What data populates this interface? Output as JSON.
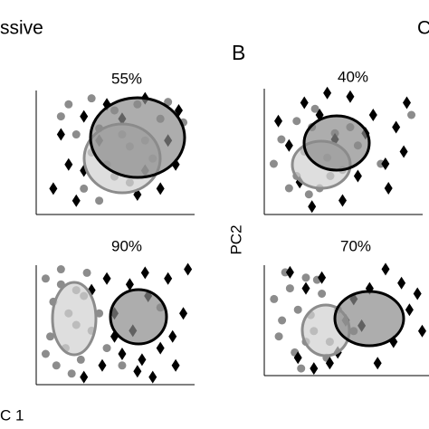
{
  "labels": {
    "panel_a": "ssive",
    "panel_b": "B",
    "panel_c": "C",
    "y_axis": "PC2",
    "x_axis": "C 1"
  },
  "chart_data": [
    {
      "type": "scatter",
      "title": "55%",
      "xlim": [
        0,
        10
      ],
      "ylim": [
        0,
        10
      ],
      "series": [
        {
          "color": "#8c8c8c",
          "marker": "circle",
          "x": [
            2,
            3.5,
            5,
            6.5,
            8.5,
            9.5,
            4,
            5.5,
            6,
            3.5,
            4.5,
            7,
            2.5,
            5,
            3,
            6,
            8,
            1.5,
            4,
            7.5
          ],
          "values": [
            9,
            9.5,
            8.5,
            9,
            9.2,
            7.5,
            7,
            6.5,
            5.5,
            5,
            4,
            6,
            6.5,
            3,
            2,
            2.5,
            7.8,
            8,
            1,
            4.5
          ]
        },
        {
          "color": "#000000",
          "marker": "diamond",
          "x": [
            1.5,
            2,
            3,
            4.5,
            7,
            8.5,
            9,
            1,
            3,
            6.5,
            8,
            5.5,
            2.5,
            9.2,
            7,
            4
          ],
          "values": [
            6.5,
            4,
            8,
            9,
            9.5,
            6,
            4,
            2,
            3.5,
            1.5,
            2,
            7.8,
            1,
            8.5,
            3.5,
            6
          ]
        }
      ]
    },
    {
      "type": "scatter",
      "title": "40%",
      "xlim": [
        0,
        10
      ],
      "ylim": [
        0,
        10
      ],
      "series": [
        {
          "color": "#8c8c8c",
          "marker": "circle",
          "x": [
            0.5,
            1,
            2,
            2.5,
            3,
            3.5,
            4,
            4.5,
            5,
            2.8,
            3.2,
            1.5,
            6,
            7.5,
            9.5,
            2,
            4.2,
            5.5
          ],
          "values": [
            4,
            6,
            3,
            5,
            7,
            2,
            4.5,
            6.5,
            3.5,
            1.5,
            8.5,
            2,
            5.5,
            4,
            8,
            7.5,
            3,
            7
          ]
        },
        {
          "color": "#000000",
          "marker": "diamond",
          "x": [
            0.8,
            1.5,
            2.5,
            3.5,
            4.5,
            5.5,
            6.5,
            7,
            7.8,
            8.5,
            9.2,
            3,
            5,
            6,
            8,
            2.2,
            4,
            9
          ],
          "values": [
            7.5,
            5.5,
            9,
            8,
            6,
            9.5,
            6.5,
            8,
            4,
            7,
            9,
            0.5,
            1,
            3,
            2,
            2.5,
            9.8,
            5
          ]
        }
      ]
    },
    {
      "type": "scatter",
      "title": "90%",
      "xlim": [
        0,
        10
      ],
      "ylim": [
        0,
        10
      ],
      "series": [
        {
          "color": "#8c8c8c",
          "marker": "circle",
          "x": [
            0.5,
            1,
            1.5,
            2,
            2.5,
            3,
            0.8,
            1.8,
            2.8,
            3.5,
            1.2,
            2.2,
            4,
            0.5,
            3.2,
            1.5,
            2.5,
            4.5,
            8,
            5.5
          ],
          "values": [
            9,
            7,
            8.5,
            6,
            5,
            7.5,
            4,
            3,
            2,
            4.5,
            1.5,
            0.8,
            6,
            2.5,
            9.5,
            9.8,
            8,
            3,
            6.5,
            1.5
          ]
        },
        {
          "color": "#000000",
          "marker": "diamond",
          "x": [
            3.5,
            4.5,
            5,
            5.5,
            6,
            6.5,
            7,
            7.5,
            8,
            8.5,
            9,
            9.5,
            5,
            6.2,
            7.2,
            8.8,
            4.2,
            9.8,
            3,
            6.8
          ],
          "values": [
            8,
            9,
            6,
            2.5,
            8.5,
            1,
            9.5,
            0.5,
            3,
            9,
            1.5,
            6,
            4,
            4.5,
            7.5,
            4,
            1.5,
            9.8,
            0.5,
            2
          ]
        }
      ]
    },
    {
      "type": "scatter",
      "title": "70%",
      "xlim": [
        0,
        10
      ],
      "ylim": [
        0,
        10
      ],
      "series": [
        {
          "color": "#8c8c8c",
          "marker": "circle",
          "x": [
            0.5,
            1,
            1.5,
            2,
            2.5,
            3,
            3.5,
            4,
            0.8,
            1.8,
            2.8,
            3.8,
            2.2,
            4.5,
            1.2,
            3.2,
            5.5,
            2.5
          ],
          "values": [
            7,
            5,
            8,
            6,
            9,
            4,
            7.5,
            3,
            3.5,
            2,
            5.5,
            1.5,
            0.5,
            6,
            9.5,
            8.8,
            4,
            3
          ]
        },
        {
          "color": "#000000",
          "marker": "diamond",
          "x": [
            1.5,
            2.5,
            3.5,
            4.5,
            5.5,
            6.5,
            7,
            7.5,
            8,
            9,
            9.5,
            6,
            4,
            5,
            8.5,
            3,
            2,
            9.8
          ],
          "values": [
            9.5,
            8,
            9,
            2,
            7,
            8,
            1,
            9.8,
            3,
            6,
            7.5,
            4.5,
            1,
            5,
            8.5,
            0.5,
            1.5,
            4
          ]
        }
      ]
    }
  ]
}
